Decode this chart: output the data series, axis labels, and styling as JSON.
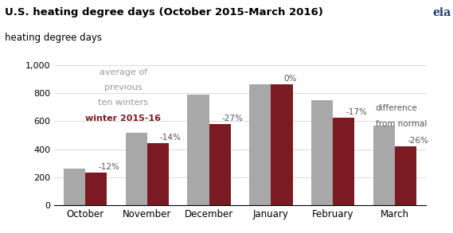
{
  "title": "U.S. heating degree days (October 2015-March 2016)",
  "ylabel": "heating degree days",
  "ylim": [
    0,
    1000
  ],
  "yticks": [
    0,
    200,
    400,
    600,
    800,
    1000
  ],
  "ytick_labels": [
    "0",
    "200",
    "400",
    "600",
    "800",
    "1,000"
  ],
  "categories": [
    "October",
    "November",
    "December",
    "January",
    "February",
    "March"
  ],
  "avg_values": [
    262,
    515,
    790,
    865,
    750,
    570
  ],
  "winter_values": [
    230,
    443,
    577,
    865,
    623,
    422
  ],
  "pct_labels": [
    "-12%",
    "-14%",
    "-27%",
    "0%",
    "-17%",
    "-26%"
  ],
  "color_avg": "#a8a8a8",
  "color_winter": "#7b1a22",
  "legend_avg_line1": "average of",
  "legend_avg_line2": "previous",
  "legend_avg_line3": "ten winters",
  "legend_winter_text": "winter 2015-16",
  "annotation_line1": "difference",
  "annotation_line2": "from normal",
  "bar_width": 0.35,
  "background_color": "#ffffff"
}
